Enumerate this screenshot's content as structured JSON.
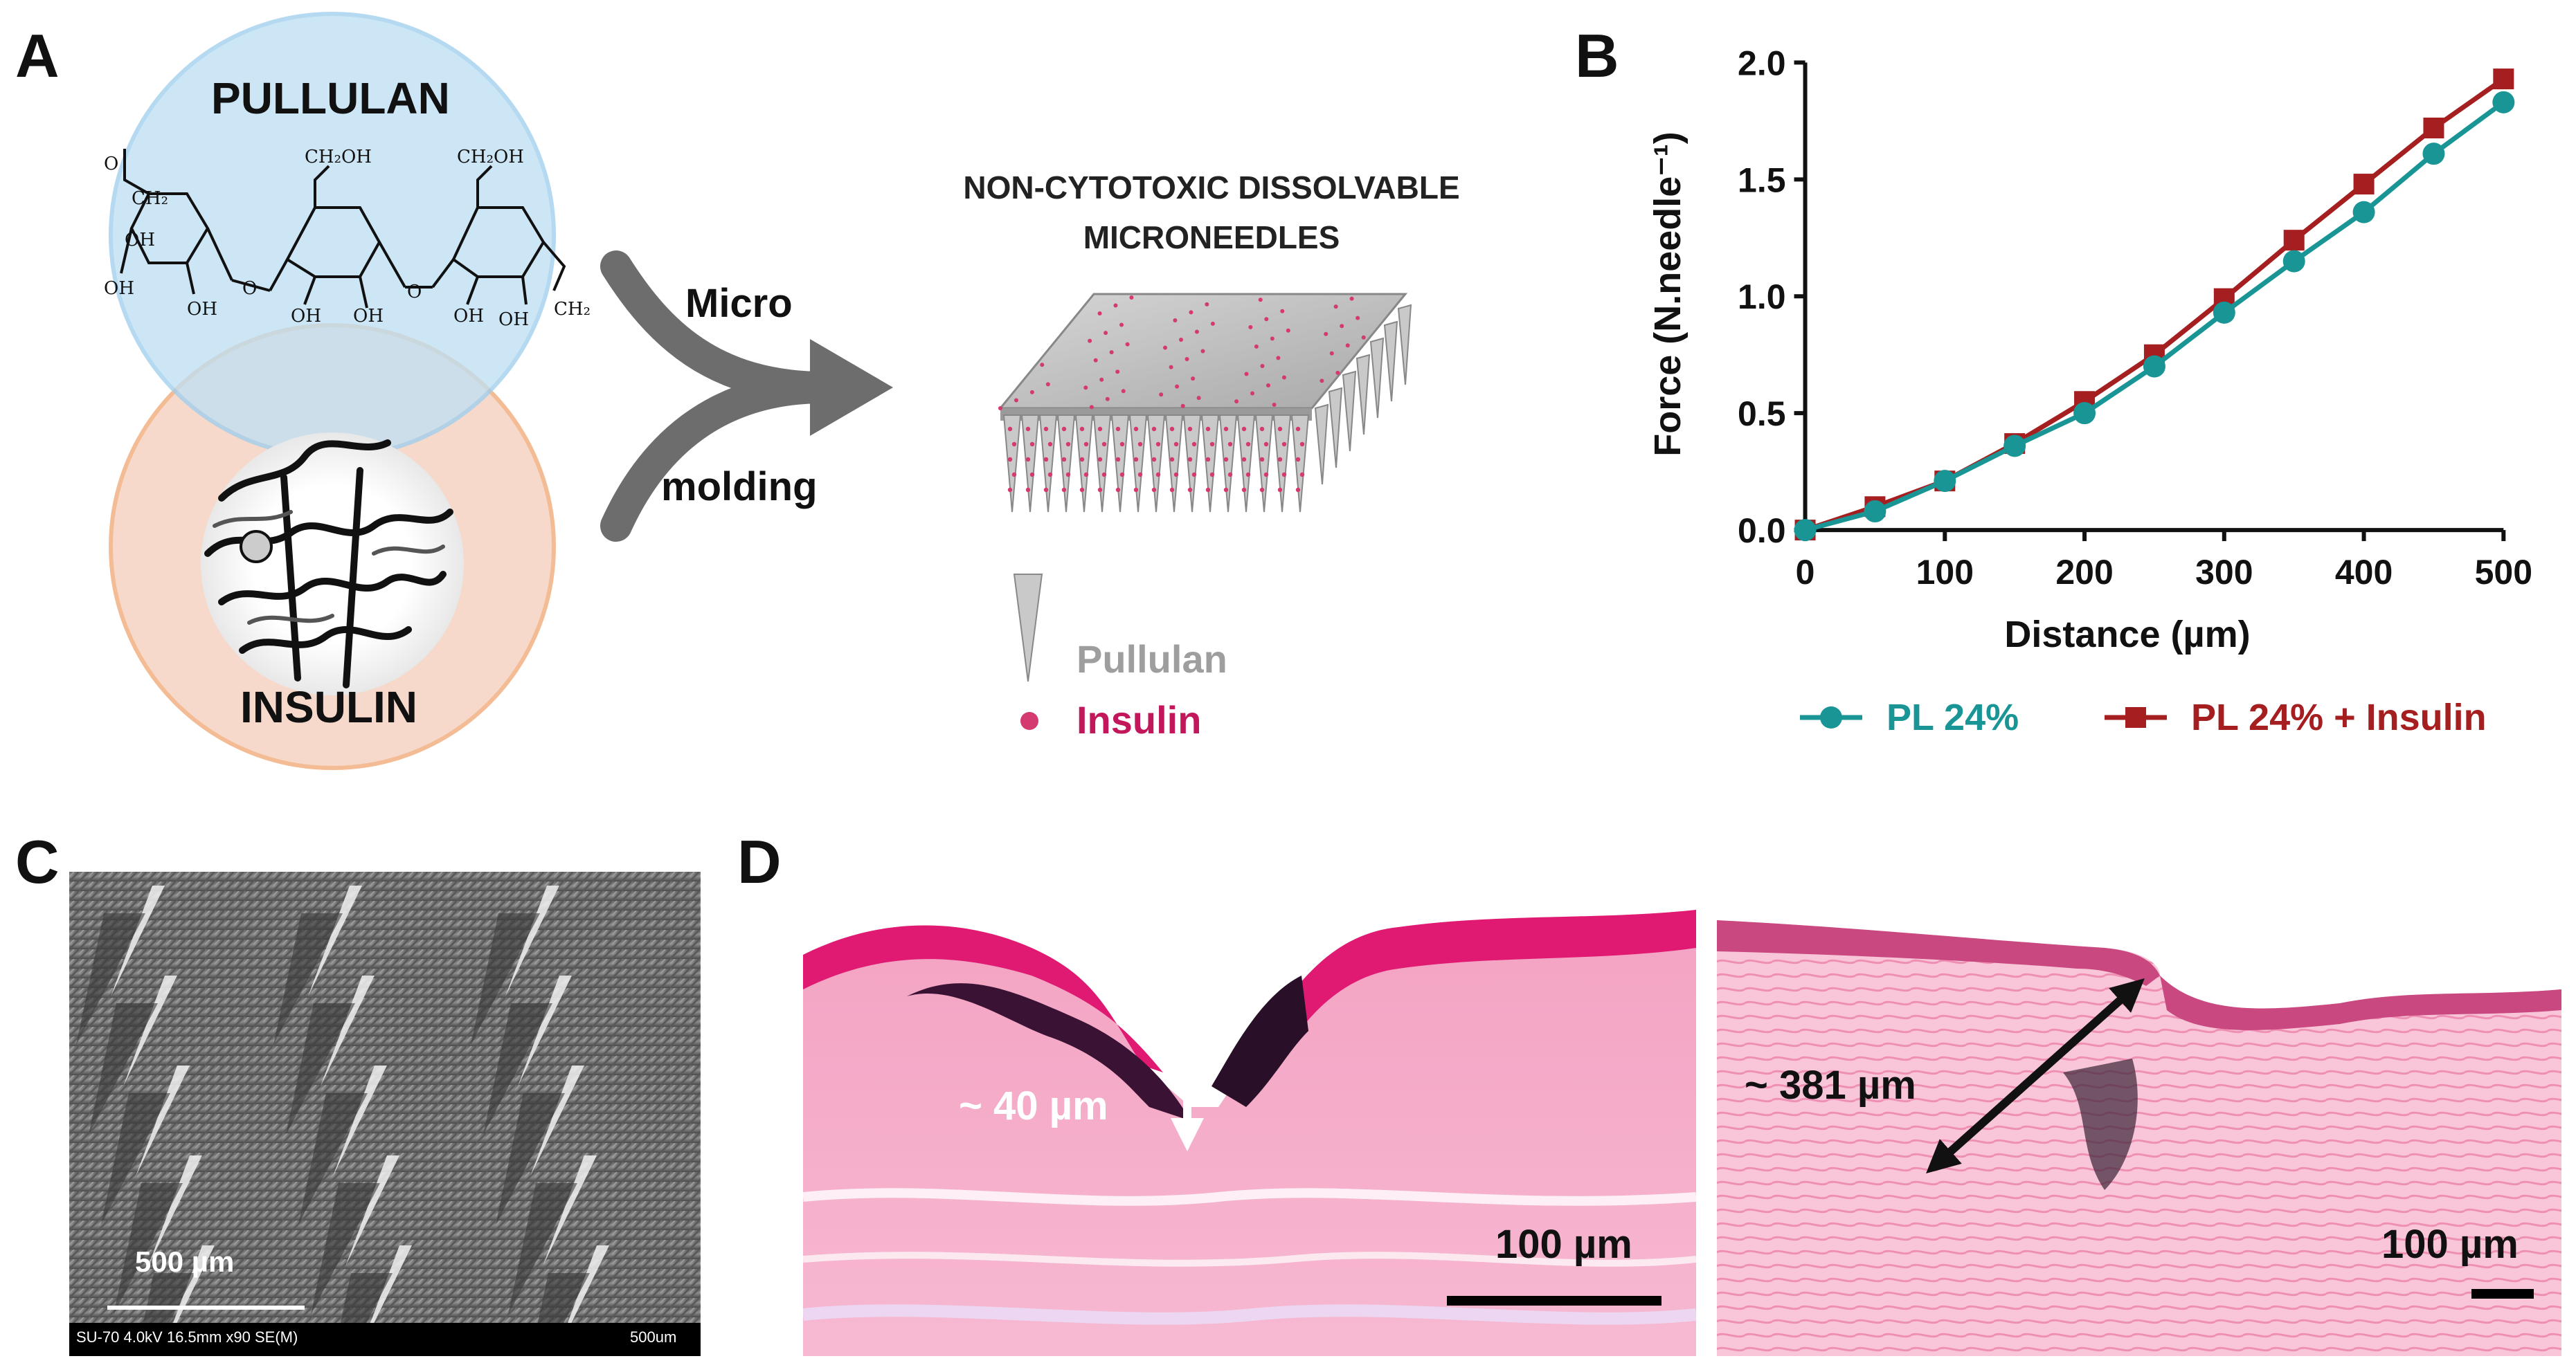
{
  "panels": {
    "A": {
      "letter": "A",
      "pullulan_label": "PULLULAN",
      "insulin_label": "INSULIN",
      "arrow_top": "Micro",
      "arrow_bottom": "molding",
      "mn_title_line1": "NON-CYTOTOXIC DISSOLVABLE",
      "mn_title_line2": "MICRONEEDLES",
      "legend": [
        {
          "label": "Pullulan",
          "color": "#9e9e9e",
          "icon": "gray-cone-icon"
        },
        {
          "label": "Insulin",
          "color": "#c2185b",
          "icon": "pink-dot-icon"
        }
      ],
      "chem_labels": {
        "ch2oh": "CH₂OH",
        "oh": "OH",
        "o": "O",
        "ch2": "CH₂"
      },
      "colors": {
        "pullulan_circle": "#bfe0f3",
        "insulin_circle": "#f6d8c8"
      }
    },
    "B": {
      "letter": "B"
    },
    "C": {
      "letter": "C",
      "scale_label": "500 µm",
      "sem_info_left": "SU-70 4.0kV 16.5mm x90 SE(M)",
      "sem_info_right": "500um"
    },
    "D": {
      "letter": "D",
      "left_annotation": "~ 40 µm",
      "left_scale": "100 µm",
      "right_annotation": "~ 381 µm",
      "right_scale": "100 µm"
    }
  },
  "chart_data": {
    "type": "line",
    "xlabel": "Distance (µm)",
    "ylabel": "Force (N.needle⁻¹)",
    "xlim": [
      0,
      500
    ],
    "ylim": [
      0,
      2.0
    ],
    "xticks": [
      0,
      100,
      200,
      300,
      400,
      500
    ],
    "yticks": [
      "0.0",
      "0.5",
      "1.0",
      "1.5",
      "2.0"
    ],
    "x": [
      0,
      50,
      100,
      150,
      200,
      250,
      300,
      350,
      400,
      450,
      500
    ],
    "series": [
      {
        "name": "PL 24%",
        "color": "#1a9596",
        "marker": "circle",
        "values": [
          0.0,
          0.08,
          0.21,
          0.36,
          0.5,
          0.7,
          0.93,
          1.15,
          1.36,
          1.61,
          1.83
        ]
      },
      {
        "name": "PL 24% + Insulin",
        "color": "#a51f21",
        "marker": "square",
        "values": [
          0.0,
          0.1,
          0.21,
          0.37,
          0.55,
          0.75,
          0.99,
          1.24,
          1.48,
          1.72,
          1.93
        ]
      }
    ],
    "legend_position": "bottom"
  }
}
